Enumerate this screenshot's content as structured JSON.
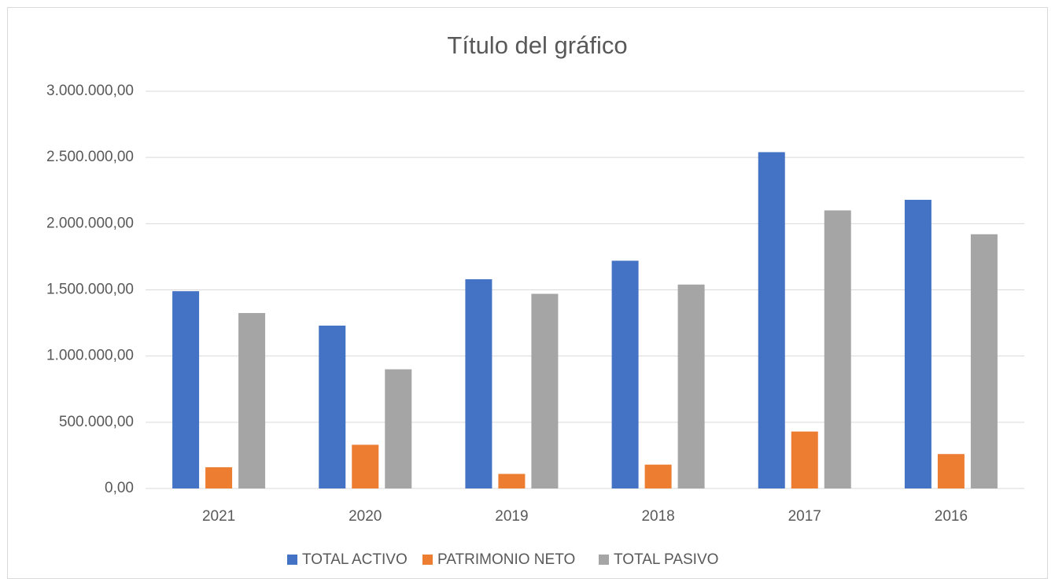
{
  "chart_data": {
    "type": "bar",
    "title": "Título del gráfico",
    "categories": [
      "2021",
      "2020",
      "2019",
      "2018",
      "2017",
      "2016"
    ],
    "series": [
      {
        "name": "TOTAL ACTIVO",
        "color": "#4472c4",
        "values": [
          1490000,
          1230000,
          1580000,
          1720000,
          2540000,
          2180000
        ]
      },
      {
        "name": "PATRIMONIO NETO",
        "color": "#ed7d31",
        "values": [
          160000,
          330000,
          110000,
          180000,
          430000,
          260000
        ]
      },
      {
        "name": "TOTAL PASIVO",
        "color": "#a5a5a5",
        "values": [
          1325000,
          900000,
          1470000,
          1540000,
          2100000,
          1920000
        ]
      }
    ],
    "ylim": [
      0,
      3000000
    ],
    "yticks": [
      {
        "value": 0,
        "label": "0,00"
      },
      {
        "value": 500000,
        "label": "500.000,00"
      },
      {
        "value": 1000000,
        "label": "1.000.000,00"
      },
      {
        "value": 1500000,
        "label": "1.500.000,00"
      },
      {
        "value": 2000000,
        "label": "2.000.000,00"
      },
      {
        "value": 2500000,
        "label": "2.500.000,00"
      },
      {
        "value": 3000000,
        "label": "3.000.000,00"
      }
    ],
    "grid": true,
    "legend": "bottom"
  }
}
